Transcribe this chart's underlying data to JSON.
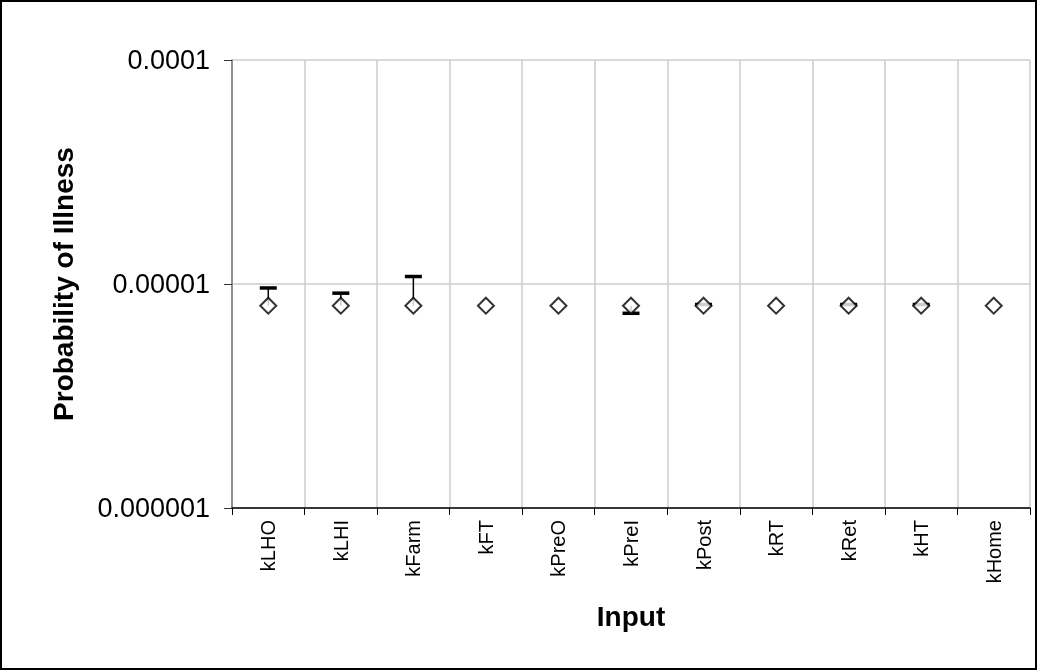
{
  "chart_data": {
    "type": "scatter",
    "xlabel": "Input",
    "ylabel": "Probability of Illness",
    "categories": [
      "kLHO",
      "kLHI",
      "kFarm",
      "kFT",
      "kPreO",
      "kPreI",
      "kPost",
      "kRT",
      "kRet",
      "kHT",
      "kHome"
    ],
    "series": [
      {
        "color": "#000000",
        "values": [
          8e-06,
          8e-06,
          8e-06,
          8e-06,
          8e-06,
          8e-06,
          8e-06,
          8e-06,
          8e-06,
          8e-06,
          8e-06
        ],
        "errors": [
          [
            8e-06,
            9.6e-06
          ],
          [
            8e-06,
            9.1e-06
          ],
          [
            8e-06,
            1.08e-05
          ],
          null,
          null,
          [
            7.4e-06,
            8e-06
          ],
          [
            8e-06,
            8.1e-06
          ],
          null,
          [
            8e-06,
            8.1e-06
          ],
          [
            8e-06,
            8.1e-06
          ],
          null
        ]
      }
    ],
    "ylim": [
      1e-06,
      0.0001
    ],
    "yticks": [
      {
        "value": 1e-06,
        "label": "0.000001"
      },
      {
        "value": 1e-05,
        "label": "0.00001"
      },
      {
        "value": 0.0001,
        "label": "0.0001"
      }
    ],
    "log": true,
    "grid": true,
    "marker": "diamond"
  }
}
